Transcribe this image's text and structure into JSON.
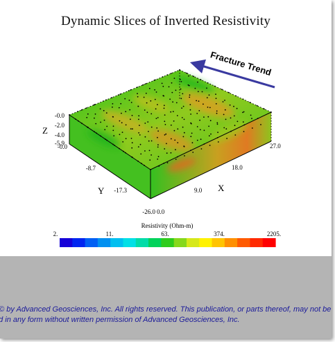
{
  "chart_data": {
    "type": "heatmap",
    "title": "Dynamic Slices of Inverted Resistivity",
    "z_axis": {
      "label": "Z",
      "ticks": [
        "-0.0",
        "-2.0",
        "-4.0",
        "-5.9"
      ]
    },
    "y_axis": {
      "label": "Y",
      "ticks": [
        "-0.0",
        "-8.7",
        "-17.3",
        "-26.0"
      ]
    },
    "x_axis": {
      "label": "X",
      "ticks": [
        "0.0",
        "9.0",
        "18.0",
        "27.0"
      ]
    },
    "annotation": "Fracture Trend",
    "colorbar": {
      "label": "Resistivity (Ohm-m)",
      "ticks": [
        "2.",
        "11.",
        "63.",
        "374.",
        "2205."
      ],
      "scale": "log",
      "colors": [
        "#1500d8",
        "#0025f0",
        "#0060f4",
        "#0090f0",
        "#00bff0",
        "#00e0e6",
        "#00dca8",
        "#00d25a",
        "#2ecc1c",
        "#86d81c",
        "#d6e81a",
        "#fff200",
        "#ffc400",
        "#ff9000",
        "#ff5a00",
        "#ff2a00",
        "#ff0000"
      ]
    },
    "grid": true
  },
  "footer": {
    "line1": "t © by Advanced Geosciences, Inc. All rights reserved. This publication, or parts thereof, may not be",
    "line2": "ed in any form without written permission of Advanced Geosciences, Inc."
  }
}
